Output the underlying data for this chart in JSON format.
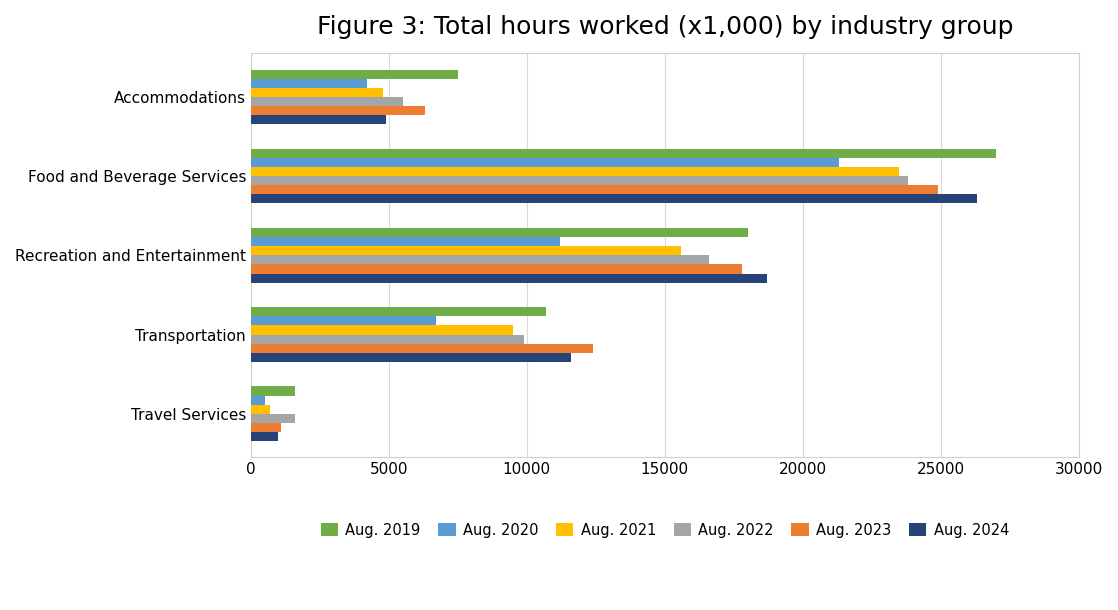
{
  "title": "Figure 3: Total hours worked (x1,000) by industry group",
  "categories": [
    "Travel Services",
    "Transportation",
    "Recreation and Entertainment",
    "Food and Beverage Services",
    "Accommodations"
  ],
  "series": {
    "Aug. 2019": [
      1600,
      10700,
      18000,
      27000,
      7500
    ],
    "Aug. 2020": [
      500,
      6700,
      11200,
      21300,
      4200
    ],
    "Aug. 2021": [
      700,
      9500,
      15600,
      23500,
      4800
    ],
    "Aug. 2022": [
      1600,
      9900,
      16600,
      23800,
      5500
    ],
    "Aug. 2023": [
      1100,
      12400,
      17800,
      24900,
      6300
    ],
    "Aug. 2024": [
      1000,
      11600,
      18700,
      26300,
      4900
    ]
  },
  "colors": {
    "Aug. 2019": "#70ad47",
    "Aug. 2020": "#5b9bd5",
    "Aug. 2021": "#ffc000",
    "Aug. 2022": "#a5a5a5",
    "Aug. 2023": "#ed7d31",
    "Aug. 2024": "#264478"
  },
  "xlim": [
    0,
    30000
  ],
  "xticks": [
    0,
    5000,
    10000,
    15000,
    20000,
    25000,
    30000
  ],
  "background_color": "#ffffff",
  "title_fontsize": 18,
  "legend_fontsize": 10.5,
  "tick_fontsize": 11,
  "bar_height": 0.115,
  "border_color": "#d0d0d0"
}
